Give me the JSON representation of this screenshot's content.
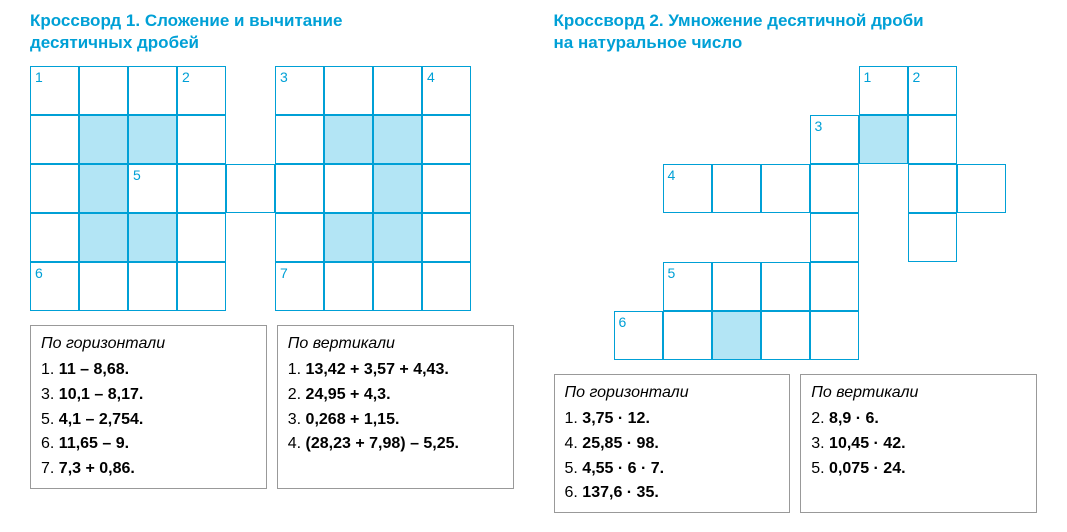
{
  "puzzle1": {
    "title_line1": "Кроссворд 1. Сложение и вычитание",
    "title_line2": "десятичных дробей",
    "cell_size": 49,
    "colors": {
      "border": "#00a0d6",
      "shaded": "#b3e5f5",
      "title": "#00a0d6"
    },
    "grid": {
      "rows": 5,
      "cols": 9,
      "cells": [
        {
          "r": 0,
          "c": 0,
          "num": "1"
        },
        {
          "r": 0,
          "c": 1
        },
        {
          "r": 0,
          "c": 2
        },
        {
          "r": 0,
          "c": 3,
          "num": "2"
        },
        {
          "r": 0,
          "c": 4,
          "empty": true
        },
        {
          "r": 0,
          "c": 5,
          "num": "3"
        },
        {
          "r": 0,
          "c": 6
        },
        {
          "r": 0,
          "c": 7
        },
        {
          "r": 0,
          "c": 8,
          "num": "4"
        },
        {
          "r": 1,
          "c": 0
        },
        {
          "r": 1,
          "c": 1,
          "shaded": true
        },
        {
          "r": 1,
          "c": 2,
          "shaded": true
        },
        {
          "r": 1,
          "c": 3
        },
        {
          "r": 1,
          "c": 4,
          "empty": true
        },
        {
          "r": 1,
          "c": 5
        },
        {
          "r": 1,
          "c": 6,
          "shaded": true
        },
        {
          "r": 1,
          "c": 7,
          "shaded": true
        },
        {
          "r": 1,
          "c": 8
        },
        {
          "r": 2,
          "c": 0
        },
        {
          "r": 2,
          "c": 1,
          "shaded": true
        },
        {
          "r": 2,
          "c": 2,
          "num": "5"
        },
        {
          "r": 2,
          "c": 3
        },
        {
          "r": 2,
          "c": 4
        },
        {
          "r": 2,
          "c": 5
        },
        {
          "r": 2,
          "c": 6
        },
        {
          "r": 2,
          "c": 7,
          "shaded": true
        },
        {
          "r": 2,
          "c": 8
        },
        {
          "r": 3,
          "c": 0
        },
        {
          "r": 3,
          "c": 1,
          "shaded": true
        },
        {
          "r": 3,
          "c": 2,
          "shaded": true
        },
        {
          "r": 3,
          "c": 3
        },
        {
          "r": 3,
          "c": 4,
          "empty": true
        },
        {
          "r": 3,
          "c": 5
        },
        {
          "r": 3,
          "c": 6,
          "shaded": true
        },
        {
          "r": 3,
          "c": 7,
          "shaded": true
        },
        {
          "r": 3,
          "c": 8
        },
        {
          "r": 4,
          "c": 0,
          "num": "6"
        },
        {
          "r": 4,
          "c": 1
        },
        {
          "r": 4,
          "c": 2
        },
        {
          "r": 4,
          "c": 3
        },
        {
          "r": 4,
          "c": 4,
          "empty": true
        },
        {
          "r": 4,
          "c": 5,
          "num": "7"
        },
        {
          "r": 4,
          "c": 6
        },
        {
          "r": 4,
          "c": 7
        },
        {
          "r": 4,
          "c": 8
        }
      ]
    },
    "clues": {
      "horizontal_header": "По горизонтали",
      "horizontal": [
        {
          "n": "1.",
          "t": "11 – 8,68."
        },
        {
          "n": "3.",
          "t": "10,1 – 8,17."
        },
        {
          "n": "5.",
          "t": "4,1 – 2,754."
        },
        {
          "n": "6.",
          "t": "11,65 – 9."
        },
        {
          "n": "7.",
          "t": "7,3 + 0,86."
        }
      ],
      "vertical_header": "По вертикали",
      "vertical": [
        {
          "n": "1.",
          "t": "13,42 + 3,57 + 4,43."
        },
        {
          "n": "2.",
          "t": "24,95 + 4,3."
        },
        {
          "n": "3.",
          "t": "0,268 + 1,15."
        },
        {
          "n": "4.",
          "t": "(28,23 + 7,98) – 5,25."
        }
      ]
    }
  },
  "puzzle2": {
    "title_line1": "Кроссворд 2. Умножение десятичной дроби",
    "title_line2": "на натуральное число",
    "grid": {
      "rows": 6,
      "cols": 8,
      "cells": [
        {
          "r": 0,
          "c": 0,
          "empty": true
        },
        {
          "r": 0,
          "c": 1,
          "empty": true
        },
        {
          "r": 0,
          "c": 2,
          "empty": true
        },
        {
          "r": 0,
          "c": 3,
          "empty": true
        },
        {
          "r": 0,
          "c": 4,
          "empty": true
        },
        {
          "r": 0,
          "c": 5,
          "num": "1"
        },
        {
          "r": 0,
          "c": 6,
          "num": "2"
        },
        {
          "r": 0,
          "c": 7,
          "empty": true
        },
        {
          "r": 1,
          "c": 0,
          "empty": true
        },
        {
          "r": 1,
          "c": 1,
          "empty": true
        },
        {
          "r": 1,
          "c": 2,
          "empty": true
        },
        {
          "r": 1,
          "c": 3,
          "empty": true
        },
        {
          "r": 1,
          "c": 4,
          "num": "3"
        },
        {
          "r": 1,
          "c": 5,
          "shaded": true
        },
        {
          "r": 1,
          "c": 6
        },
        {
          "r": 1,
          "c": 7,
          "empty": true
        },
        {
          "r": 2,
          "c": 0,
          "empty": true
        },
        {
          "r": 2,
          "c": 1,
          "num": "4"
        },
        {
          "r": 2,
          "c": 2
        },
        {
          "r": 2,
          "c": 3
        },
        {
          "r": 2,
          "c": 4
        },
        {
          "r": 2,
          "c": 5,
          "empty": true
        },
        {
          "r": 2,
          "c": 6
        },
        {
          "r": 2,
          "c": 7
        },
        {
          "r": 3,
          "c": 0,
          "empty": true
        },
        {
          "r": 3,
          "c": 1,
          "empty": true
        },
        {
          "r": 3,
          "c": 2,
          "empty": true
        },
        {
          "r": 3,
          "c": 3,
          "empty": true
        },
        {
          "r": 3,
          "c": 4
        },
        {
          "r": 3,
          "c": 5,
          "empty": true
        },
        {
          "r": 3,
          "c": 6
        },
        {
          "r": 3,
          "c": 7,
          "empty": true
        },
        {
          "r": 4,
          "c": 0,
          "empty": true
        },
        {
          "r": 4,
          "c": 1,
          "num": "5"
        },
        {
          "r": 4,
          "c": 2
        },
        {
          "r": 4,
          "c": 3
        },
        {
          "r": 4,
          "c": 4
        },
        {
          "r": 4,
          "c": 5,
          "empty": true
        },
        {
          "r": 4,
          "c": 6,
          "empty": true
        },
        {
          "r": 4,
          "c": 7,
          "empty": true
        },
        {
          "r": 5,
          "c": 0,
          "num": "6"
        },
        {
          "r": 5,
          "c": 1
        },
        {
          "r": 5,
          "c": 2,
          "shaded": true
        },
        {
          "r": 5,
          "c": 3
        },
        {
          "r": 5,
          "c": 4
        },
        {
          "r": 5,
          "c": 5,
          "empty": true
        },
        {
          "r": 5,
          "c": 6,
          "empty": true
        },
        {
          "r": 5,
          "c": 7,
          "empty": true
        }
      ]
    },
    "clues": {
      "horizontal_header": "По горизонтали",
      "horizontal": [
        {
          "n": "1.",
          "t": "3,75 · 12."
        },
        {
          "n": "4.",
          "t": "25,85 · 98."
        },
        {
          "n": "5.",
          "t": "4,55 · 6 · 7."
        },
        {
          "n": "6.",
          "t": "137,6 · 35."
        }
      ],
      "vertical_header": "По вертикали",
      "vertical": [
        {
          "n": "2.",
          "t": "8,9 · 6."
        },
        {
          "n": "3.",
          "t": "10,45 · 42."
        },
        {
          "n": "5.",
          "t": "0,075 · 24."
        }
      ]
    }
  }
}
